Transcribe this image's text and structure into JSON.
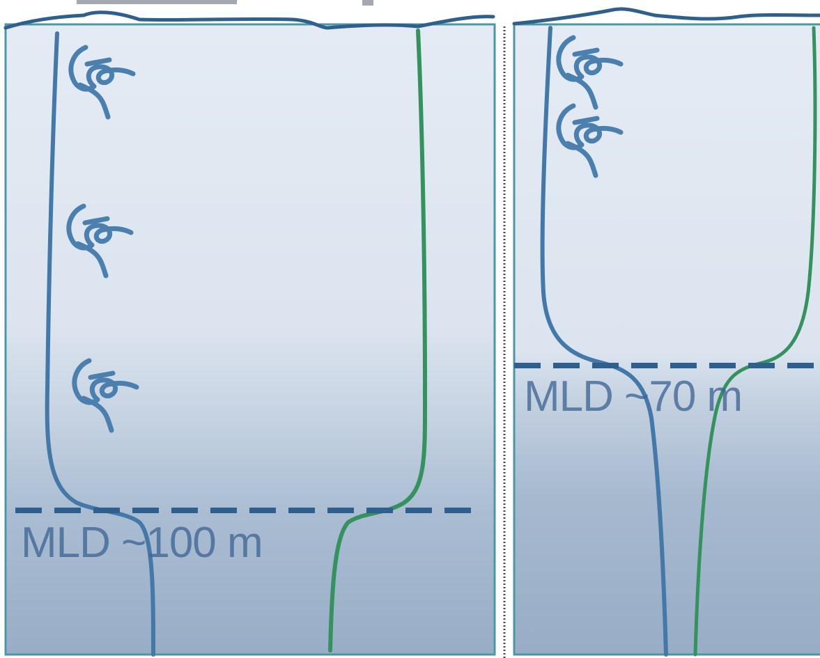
{
  "colors": {
    "panel_top": "#e3eaf3",
    "panel_bottom": "#9cb1c9",
    "panel_border": "#4a97a6",
    "surface_line": "#2f5f8f",
    "temperature_profile": "#4478a8",
    "density_profile": "#34925f",
    "mld_dashed_line": "#2f5f8f",
    "eddy_swirl": "#4a7fae",
    "separator": "#3c4a63"
  },
  "icons": [
    "turbulent-eddy-icon"
  ],
  "panels": [
    {
      "id": "left",
      "mld_label": "MLD ~100 m",
      "eddy_count": 3
    },
    {
      "id": "right",
      "mld_label": "MLD ~70 m",
      "eddy_count": 2
    }
  ]
}
